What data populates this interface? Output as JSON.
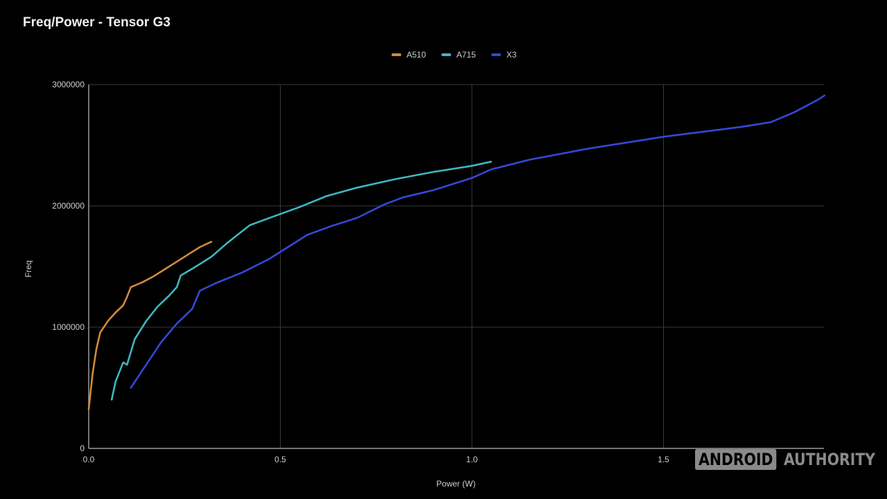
{
  "chart_data": {
    "type": "line",
    "title": "Freq/Power - Tensor G3",
    "xlabel": "Power (W)",
    "ylabel": "Freq",
    "xlim": [
      0,
      1.92
    ],
    "ylim": [
      0,
      3000000
    ],
    "x_ticks": [
      "0.0",
      "0.5",
      "1.0",
      "1.5"
    ],
    "y_ticks": [
      "0",
      "1000000",
      "2000000",
      "3000000"
    ],
    "grid": true,
    "legend_position": "top",
    "series": [
      {
        "name": "A510",
        "color": "#d08a3c",
        "points": [
          [
            0.0,
            324000
          ],
          [
            0.01,
            610000
          ],
          [
            0.02,
            820000
          ],
          [
            0.03,
            955000
          ],
          [
            0.05,
            1050000
          ],
          [
            0.07,
            1120000
          ],
          [
            0.09,
            1180000
          ],
          [
            0.1,
            1250000
          ],
          [
            0.11,
            1330000
          ],
          [
            0.14,
            1370000
          ],
          [
            0.17,
            1420000
          ],
          [
            0.21,
            1500000
          ],
          [
            0.25,
            1580000
          ],
          [
            0.29,
            1660000
          ],
          [
            0.32,
            1704000
          ]
        ]
      },
      {
        "name": "A715",
        "color": "#3fb6c0",
        "points": [
          [
            0.06,
            402000
          ],
          [
            0.07,
            550000
          ],
          [
            0.09,
            710000
          ],
          [
            0.1,
            690000
          ],
          [
            0.12,
            900000
          ],
          [
            0.15,
            1050000
          ],
          [
            0.18,
            1170000
          ],
          [
            0.21,
            1260000
          ],
          [
            0.23,
            1330000
          ],
          [
            0.24,
            1425000
          ],
          [
            0.28,
            1500000
          ],
          [
            0.32,
            1580000
          ],
          [
            0.36,
            1690000
          ],
          [
            0.42,
            1840000
          ],
          [
            0.48,
            1910000
          ],
          [
            0.55,
            1990000
          ],
          [
            0.62,
            2080000
          ],
          [
            0.7,
            2150000
          ],
          [
            0.8,
            2220000
          ],
          [
            0.9,
            2280000
          ],
          [
            1.0,
            2330000
          ],
          [
            1.05,
            2364000
          ]
        ]
      },
      {
        "name": "X3",
        "color": "#3548d6",
        "points": [
          [
            0.11,
            500000
          ],
          [
            0.15,
            690000
          ],
          [
            0.19,
            880000
          ],
          [
            0.23,
            1030000
          ],
          [
            0.27,
            1150000
          ],
          [
            0.29,
            1300000
          ],
          [
            0.33,
            1360000
          ],
          [
            0.4,
            1450000
          ],
          [
            0.47,
            1560000
          ],
          [
            0.52,
            1660000
          ],
          [
            0.57,
            1760000
          ],
          [
            0.63,
            1830000
          ],
          [
            0.7,
            1900000
          ],
          [
            0.77,
            2010000
          ],
          [
            0.82,
            2070000
          ],
          [
            0.9,
            2130000
          ],
          [
            1.0,
            2230000
          ],
          [
            1.05,
            2300000
          ],
          [
            1.15,
            2380000
          ],
          [
            1.3,
            2470000
          ],
          [
            1.5,
            2570000
          ],
          [
            1.7,
            2650000
          ],
          [
            1.78,
            2690000
          ],
          [
            1.84,
            2770000
          ],
          [
            1.9,
            2870000
          ],
          [
            1.92,
            2910000
          ]
        ]
      }
    ]
  },
  "watermark": {
    "boxed": "ANDROID",
    "text": "AUTHORITY"
  }
}
